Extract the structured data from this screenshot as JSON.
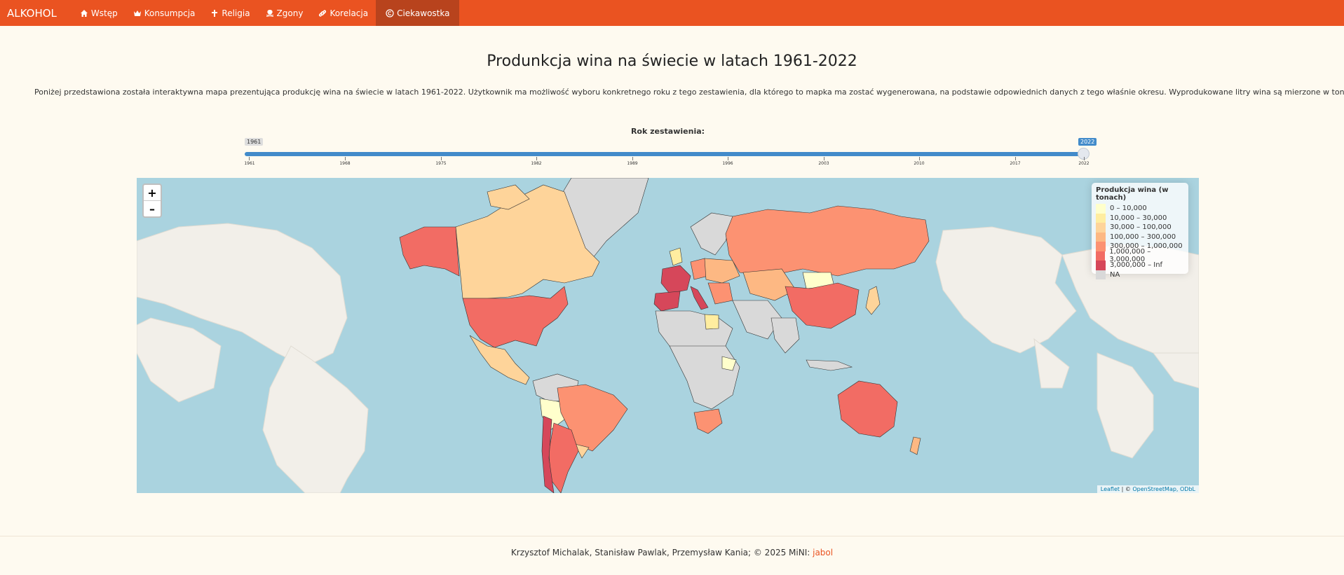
{
  "navbar": {
    "brand": "ALKOHOL",
    "items": [
      {
        "label": "Wstęp",
        "icon": "home-icon"
      },
      {
        "label": "Konsumpcja",
        "icon": "crown-icon"
      },
      {
        "label": "Religia",
        "icon": "cross-icon"
      },
      {
        "label": "Zgony",
        "icon": "skull-icon"
      },
      {
        "label": "Korelacja",
        "icon": "link-icon"
      },
      {
        "label": "Ciekawostka",
        "icon": "copyright-icon",
        "active": true
      }
    ]
  },
  "page": {
    "title": "Produnkcja wina na świecie w latach 1961-2022",
    "description": "Poniżej przedstawiona została interaktywna mapa prezentująca produkcję wina na świecie w latach 1961-2022. Użytkownik ma możliwość wyboru konkretnego roku z tego zestawienia, dla którego to mapka ma zostać wygenerowana, na podstawie odpowiednich danych z tego właśnie okresu. Wyprodukowane litry wina są mierzone w tonach."
  },
  "slider": {
    "label": "Rok zestawienia:",
    "min": "1961",
    "max": "2022",
    "value": "2022",
    "ticks": [
      "1961",
      "1968",
      "1975",
      "1982",
      "1989",
      "1996",
      "2003",
      "2010",
      "2017",
      "2022"
    ]
  },
  "map": {
    "zoom_in": "+",
    "zoom_out": "–",
    "legend_title": "Produkcja wina (w tonach)",
    "legend": [
      {
        "label": "0 – 10,000",
        "color": "#ffffcc"
      },
      {
        "label": "10,000 – 30,000",
        "color": "#ffeda0"
      },
      {
        "label": "30,000 – 100,000",
        "color": "#fed49a"
      },
      {
        "label": "100,000 – 300,000",
        "color": "#fdb883"
      },
      {
        "label": "300,000 – 1,000,000",
        "color": "#fc9272"
      },
      {
        "label": "1,000,000 – 3,000,000",
        "color": "#f26c64"
      },
      {
        "label": "3,000,000 – Inf",
        "color": "#d6475a"
      },
      {
        "label": "NA",
        "color": "#d9d9d9"
      }
    ],
    "attribution_leaflet": "Leaflet",
    "attribution_sep": " | © ",
    "attribution_osm": "OpenStreetMap, ODbL"
  },
  "footer": {
    "authors": "Krzysztof Michalak, Stanisław Pawlak, Przemysław Kania; © 2025 MiNI: ",
    "link": "jabol"
  }
}
